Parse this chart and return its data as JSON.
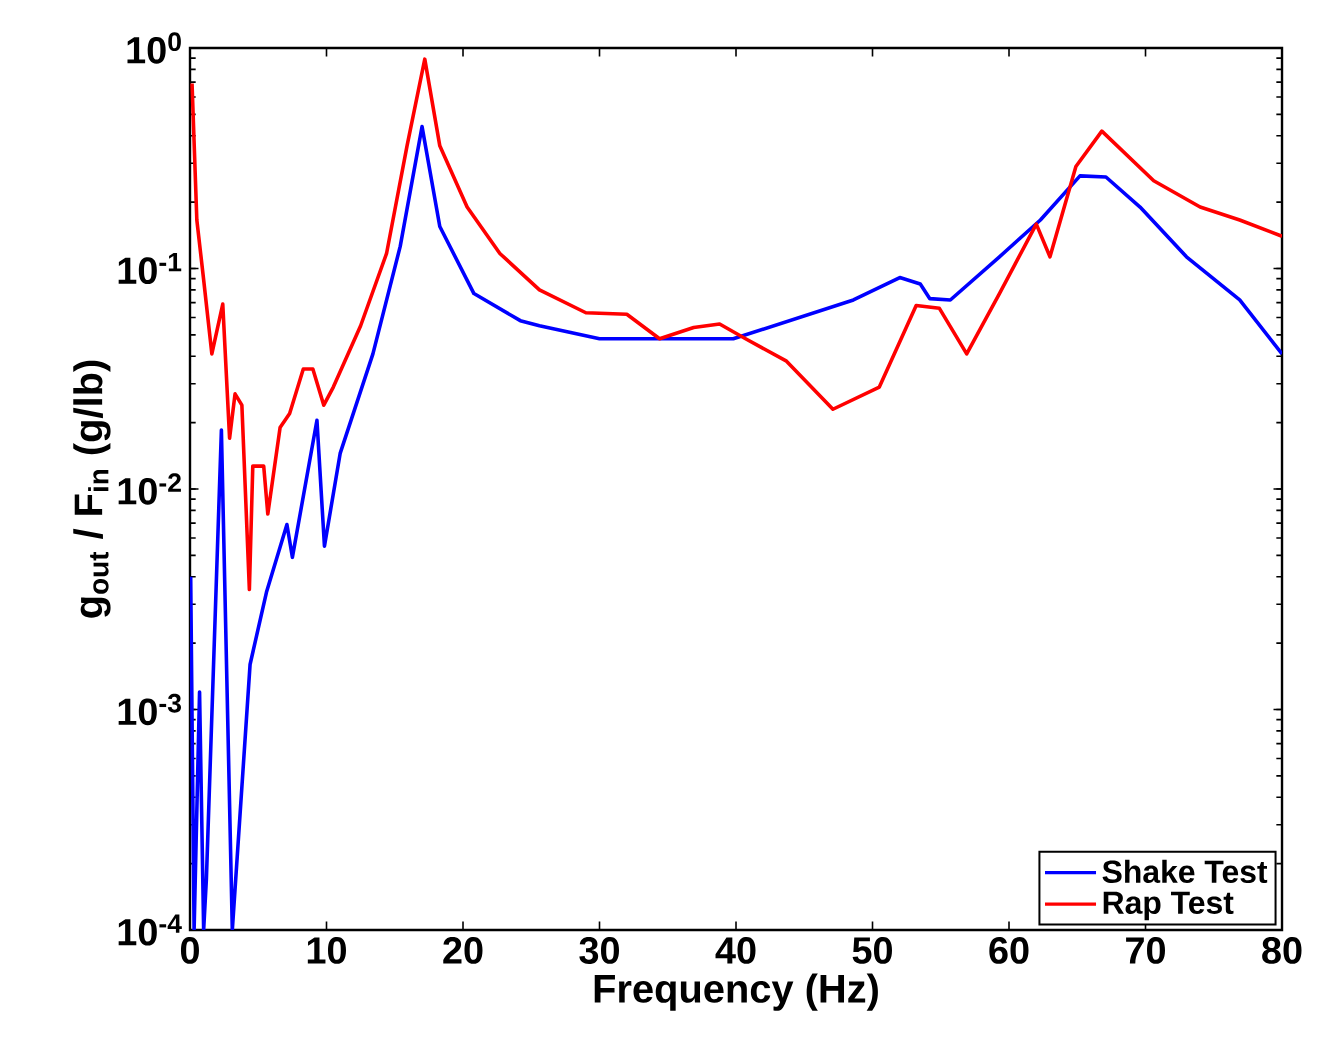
{
  "chart_data": {
    "type": "line",
    "xlabel": "Frequency (Hz)",
    "ylabel": "g$_{out}$ / F$_{in}$ (g/lb)",
    "log": "y",
    "xlim": [
      0,
      80
    ],
    "ylim": [
      0.0001,
      1
    ],
    "xticks": [
      0,
      10,
      20,
      30,
      40,
      50,
      60,
      70,
      80
    ],
    "yticks": [
      {
        "value": 0.0001,
        "label": "10$^{-4}$"
      },
      {
        "value": 0.001,
        "label": "10$^{-3}$"
      },
      {
        "value": 0.01,
        "label": "10$^{-2}$"
      },
      {
        "value": 0.1,
        "label": "10$^{-1}$"
      },
      {
        "value": 1,
        "label": "10$^{0}$"
      }
    ],
    "legend": "bottom right",
    "grid": false,
    "marker": "none",
    "line_style": "solid",
    "series": [
      {
        "name": "Shake Test",
        "color": "#0000ff",
        "x": [
          0.05,
          0.3,
          0.7,
          1.0,
          1.2,
          2.3,
          3.1,
          4.4,
          5.6,
          7.1,
          7.5,
          9.3,
          9.85,
          11,
          13.4,
          15.4,
          17,
          18.3,
          20.8,
          24.2,
          25.6,
          30,
          39.8,
          48.6,
          52,
          53.5,
          54.2,
          55.7,
          59.3,
          62.3,
          65.2,
          67.1,
          69.6,
          73,
          76.9,
          80
        ],
        "values": [
          0.004,
          0.0001,
          0.0012,
          0.0001,
          0.00017,
          0.0185,
          0.0001,
          0.0016,
          0.0034,
          0.0069,
          0.0049,
          0.0205,
          0.0055,
          0.0145,
          0.041,
          0.126,
          0.44,
          0.155,
          0.077,
          0.058,
          0.055,
          0.048,
          0.048,
          0.072,
          0.091,
          0.085,
          0.073,
          0.072,
          0.113,
          0.166,
          0.263,
          0.26,
          0.19,
          0.113,
          0.072,
          0.041
        ]
      },
      {
        "name": "Rap Test",
        "color": "#ff0000",
        "x": [
          0.15,
          0.5,
          1.0,
          1.6,
          2.4,
          2.9,
          3.3,
          3.8,
          4.35,
          4.6,
          5.4,
          5.7,
          6.6,
          7.3,
          8.3,
          9.0,
          9.8,
          10.5,
          12.5,
          14.4,
          15.9,
          17.2,
          18.3,
          20.3,
          22.7,
          25.6,
          29,
          32,
          34.4,
          36.9,
          38.8,
          40.7,
          43.7,
          47.1,
          50.5,
          53.2,
          54.9,
          56.9,
          59.3,
          62,
          63,
          64.9,
          66.8,
          70.6,
          74,
          76.9,
          80
        ],
        "values": [
          0.69,
          0.166,
          0.089,
          0.041,
          0.069,
          0.017,
          0.027,
          0.024,
          0.0035,
          0.0127,
          0.0127,
          0.0077,
          0.019,
          0.022,
          0.035,
          0.035,
          0.024,
          0.029,
          0.055,
          0.117,
          0.36,
          0.89,
          0.36,
          0.19,
          0.117,
          0.08,
          0.063,
          0.062,
          0.048,
          0.054,
          0.056,
          0.048,
          0.038,
          0.023,
          0.029,
          0.068,
          0.066,
          0.041,
          0.077,
          0.159,
          0.113,
          0.29,
          0.42,
          0.25,
          0.19,
          0.166,
          0.14
        ]
      }
    ]
  }
}
